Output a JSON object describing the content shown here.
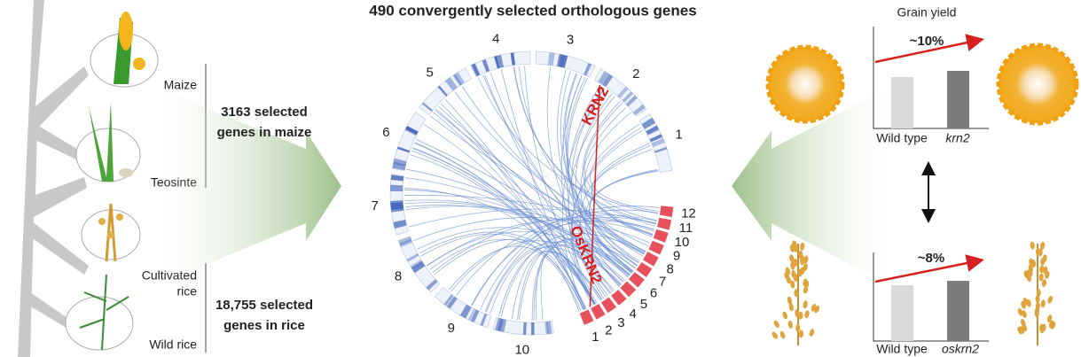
{
  "title": "490 convergently selected orthologous genes",
  "left": {
    "maize": "Maize",
    "teosinte": "Teosinte",
    "cultivated_rice": [
      "Cultivated",
      "rice"
    ],
    "wild_rice": "Wild rice",
    "maize_genes": [
      "3163 selected",
      "genes in maize"
    ],
    "rice_genes": [
      "18,755 selected",
      "genes in rice"
    ]
  },
  "circos": {
    "maize_chromosomes": [
      "1",
      "2",
      "3",
      "4",
      "5",
      "6",
      "7",
      "8",
      "9",
      "10"
    ],
    "rice_chromosomes": [
      "1",
      "2",
      "3",
      "4",
      "5",
      "6",
      "7",
      "8",
      "9",
      "10",
      "11",
      "12"
    ],
    "maize_gene": "KRN2",
    "rice_gene": "OsKRN2"
  },
  "right": {
    "title": "Grain yield",
    "maize_gain": "~10%",
    "maize_labels": [
      "Wild type",
      "krn2"
    ],
    "rice_gain": "~8%",
    "rice_labels": [
      "Wild type",
      "oskrn2"
    ]
  }
}
